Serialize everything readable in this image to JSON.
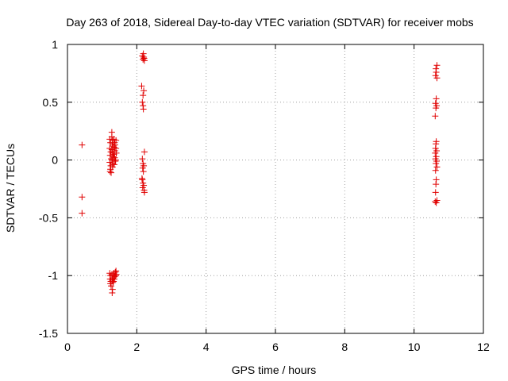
{
  "chart_data": {
    "type": "scatter",
    "title": "Day 263 of 2018, Sidereal Day-to-day VTEC variation (SDTVAR) for receiver mobs",
    "xlabel": "GPS time / hours",
    "ylabel": "SDTVAR / TECUs",
    "xlim": [
      0,
      12
    ],
    "ylim": [
      -1.5,
      1
    ],
    "xticks": [
      0,
      2,
      4,
      6,
      8,
      10,
      12
    ],
    "yticks": [
      -1.5,
      -1,
      -0.5,
      0,
      0.5,
      1
    ],
    "xtick_labels": [
      "0",
      "2",
      "4",
      "6",
      "8",
      "10",
      "12"
    ],
    "ytick_labels": [
      "-1.5",
      "-1",
      "-0.5",
      "0",
      "0.5",
      "1"
    ],
    "grid": true,
    "marker": "+",
    "marker_color": "#e00000",
    "series": [
      {
        "name": "SDTVAR",
        "points": [
          [
            0.42,
            0.13
          ],
          [
            0.42,
            -0.32
          ],
          [
            0.42,
            -0.46
          ],
          [
            1.22,
            0.18
          ],
          [
            1.24,
            0.15
          ],
          [
            1.22,
            0.1
          ],
          [
            1.25,
            0.07
          ],
          [
            1.23,
            0.04
          ],
          [
            1.26,
            0.01
          ],
          [
            1.22,
            -0.02
          ],
          [
            1.25,
            -0.05
          ],
          [
            1.24,
            -0.08
          ],
          [
            1.23,
            -0.1
          ],
          [
            1.26,
            -0.11
          ],
          [
            1.28,
            0.2
          ],
          [
            1.3,
            0.17
          ],
          [
            1.29,
            0.14
          ],
          [
            1.31,
            0.12
          ],
          [
            1.28,
            0.09
          ],
          [
            1.3,
            0.06
          ],
          [
            1.32,
            0.03
          ],
          [
            1.29,
            0.0
          ],
          [
            1.31,
            -0.03
          ],
          [
            1.3,
            -0.06
          ],
          [
            1.28,
            0.24
          ],
          [
            1.34,
            0.18
          ],
          [
            1.36,
            0.15
          ],
          [
            1.35,
            0.11
          ],
          [
            1.37,
            0.08
          ],
          [
            1.34,
            0.05
          ],
          [
            1.36,
            0.02
          ],
          [
            1.38,
            -0.01
          ],
          [
            1.35,
            -0.04
          ],
          [
            1.37,
            0.13
          ],
          [
            1.4,
            0.17
          ],
          [
            1.4,
            0.1
          ],
          [
            1.41,
            0.06
          ],
          [
            1.39,
            0.0
          ],
          [
            1.22,
            -0.98
          ],
          [
            1.24,
            -1.0
          ],
          [
            1.23,
            -1.03
          ],
          [
            1.25,
            -1.05
          ],
          [
            1.24,
            -1.07
          ],
          [
            1.26,
            -1.09
          ],
          [
            1.28,
            -0.99
          ],
          [
            1.3,
            -1.02
          ],
          [
            1.29,
            -1.04
          ],
          [
            1.31,
            -1.06
          ],
          [
            1.3,
            -1.12
          ],
          [
            1.29,
            -1.15
          ],
          [
            1.33,
            -1.0
          ],
          [
            1.34,
            -0.98
          ],
          [
            1.35,
            -1.03
          ],
          [
            1.33,
            -1.05
          ],
          [
            1.36,
            -1.01
          ],
          [
            1.38,
            -0.97
          ],
          [
            1.4,
            -0.96
          ],
          [
            1.39,
            -1.0
          ],
          [
            1.41,
            -0.99
          ],
          [
            2.14,
            0.64
          ],
          [
            2.18,
            0.56
          ],
          [
            2.2,
            0.6
          ],
          [
            2.16,
            0.5
          ],
          [
            2.18,
            0.47
          ],
          [
            2.19,
            0.44
          ],
          [
            2.16,
            0.9
          ],
          [
            2.18,
            0.87
          ],
          [
            2.2,
            0.89
          ],
          [
            2.22,
            0.86
          ],
          [
            2.19,
            0.92
          ],
          [
            2.21,
            0.88
          ],
          [
            2.22,
            0.07
          ],
          [
            2.16,
            0.01
          ],
          [
            2.18,
            -0.03
          ],
          [
            2.2,
            -0.05
          ],
          [
            2.17,
            -0.07
          ],
          [
            2.19,
            -0.1
          ],
          [
            2.16,
            -0.17
          ],
          [
            2.18,
            -0.2
          ],
          [
            2.2,
            -0.22
          ],
          [
            2.17,
            -0.24
          ],
          [
            2.21,
            -0.26
          ],
          [
            2.22,
            -0.28
          ],
          [
            2.15,
            -0.16
          ],
          [
            10.63,
            0.79
          ],
          [
            10.66,
            0.82
          ],
          [
            10.64,
            0.76
          ],
          [
            10.62,
            0.73
          ],
          [
            10.66,
            0.71
          ],
          [
            10.64,
            0.53
          ],
          [
            10.62,
            0.49
          ],
          [
            10.65,
            0.47
          ],
          [
            10.63,
            0.45
          ],
          [
            10.61,
            0.38
          ],
          [
            10.64,
            0.16
          ],
          [
            10.63,
            0.14
          ],
          [
            10.62,
            0.1
          ],
          [
            10.65,
            0.08
          ],
          [
            10.61,
            0.06
          ],
          [
            10.64,
            0.03
          ],
          [
            10.62,
            0.01
          ],
          [
            10.65,
            -0.01
          ],
          [
            10.63,
            -0.03
          ],
          [
            10.66,
            -0.06
          ],
          [
            10.62,
            -0.09
          ],
          [
            10.64,
            -0.17
          ],
          [
            10.63,
            -0.21
          ],
          [
            10.62,
            -0.28
          ],
          [
            10.61,
            -0.36
          ],
          [
            10.64,
            -0.37
          ],
          [
            10.66,
            -0.35
          ]
        ]
      }
    ]
  }
}
